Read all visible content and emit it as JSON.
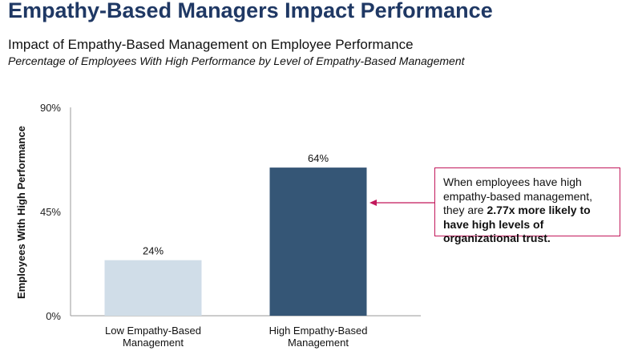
{
  "header": {
    "title": "Empathy-Based Managers Impact Performance",
    "subtitle": "Impact of Empathy-Based Management on Employee Performance",
    "subsubtitle": "Percentage of Employees With High Performance by Level of Empathy-Based Management"
  },
  "chart_data": {
    "type": "bar",
    "ylabel": "Employees With High Performance",
    "xlabel": "",
    "ylim": [
      0,
      90
    ],
    "yticks": [
      "0%",
      "45%",
      "90%"
    ],
    "ytick_values": [
      0,
      45,
      90
    ],
    "categories": [
      "Low Empathy-Based Management",
      "High Empathy-Based Management"
    ],
    "category_lines": [
      [
        "Low Empathy-Based",
        "Management"
      ],
      [
        "High Empathy-Based",
        "Management"
      ]
    ],
    "values": [
      24,
      64
    ],
    "value_labels": [
      "24%",
      "64%"
    ],
    "colors": [
      "#d0dde8",
      "#355676"
    ]
  },
  "callout": {
    "text_plain": "When employees have high empathy-based management, they are ",
    "text_bold": "2.77x more likely to have high levels of organizational trust.",
    "border_color": "#c2185b"
  }
}
